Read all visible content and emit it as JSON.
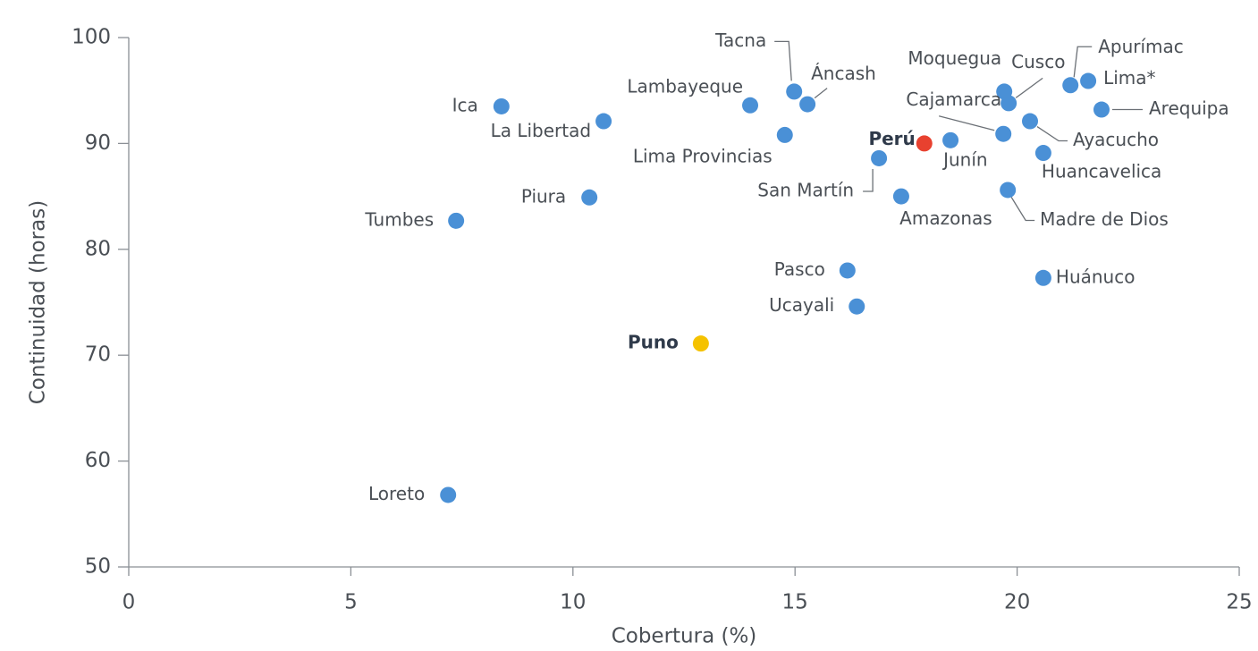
{
  "chart_data": {
    "type": "scatter",
    "x_label": "Cobertura (%)",
    "y_label": "Continuidad (horas)",
    "xlim": [
      0,
      25
    ],
    "xticks": [
      0,
      5,
      10,
      15,
      20,
      25
    ],
    "ylim": [
      50,
      100
    ],
    "yticks": [
      50,
      60,
      70,
      80,
      90,
      100
    ],
    "color": "#4a90d6",
    "points": [
      {
        "label": "Ica",
        "x": 8.39,
        "y": 93.5
      },
      {
        "label": "La Libertad",
        "x": 10.69,
        "y": 92.1
      },
      {
        "label": "Lambayeque",
        "x": 13.99,
        "y": 93.6
      },
      {
        "label": "Tacna",
        "x": 14.98,
        "y": 94.9
      },
      {
        "label": "Áncash",
        "x": 15.28,
        "y": 93.7
      },
      {
        "label": "Lima Provincias",
        "x": 14.77,
        "y": 90.8
      },
      {
        "label": "San Martín",
        "x": 16.89,
        "y": 88.6
      },
      {
        "label": "Amazonas",
        "x": 17.39,
        "y": 85.0
      },
      {
        "label": "Perú",
        "x": 17.91,
        "y": 90.0,
        "color": "#e8412f",
        "bold": true
      },
      {
        "label": "Junín",
        "x": 18.5,
        "y": 90.3
      },
      {
        "label": "Moquegua",
        "x": 19.71,
        "y": 94.9
      },
      {
        "label": "Cusco",
        "x": 19.81,
        "y": 93.8
      },
      {
        "label": "Cajamarca",
        "x": 19.69,
        "y": 90.9
      },
      {
        "label": "Ayacucho",
        "x": 20.29,
        "y": 92.1
      },
      {
        "label": "Huancavelica",
        "x": 20.59,
        "y": 89.1
      },
      {
        "label": "Madre de Dios",
        "x": 19.79,
        "y": 85.6
      },
      {
        "label": "Apurímac",
        "x": 21.2,
        "y": 95.5
      },
      {
        "label": "Lima*",
        "x": 21.6,
        "y": 95.9
      },
      {
        "label": "Arequipa",
        "x": 21.9,
        "y": 93.2
      },
      {
        "label": "Piura",
        "x": 10.37,
        "y": 84.9
      },
      {
        "label": "Tumbes",
        "x": 7.37,
        "y": 82.7
      },
      {
        "label": "Pasco",
        "x": 16.18,
        "y": 78.0
      },
      {
        "label": "Ucayali",
        "x": 16.39,
        "y": 74.6
      },
      {
        "label": "Huánuco",
        "x": 20.59,
        "y": 77.3
      },
      {
        "label": "Puno",
        "x": 12.88,
        "y": 71.1,
        "color": "#f5c200",
        "bold": true
      },
      {
        "label": "Loreto",
        "x": 7.19,
        "y": 56.8
      }
    ]
  }
}
